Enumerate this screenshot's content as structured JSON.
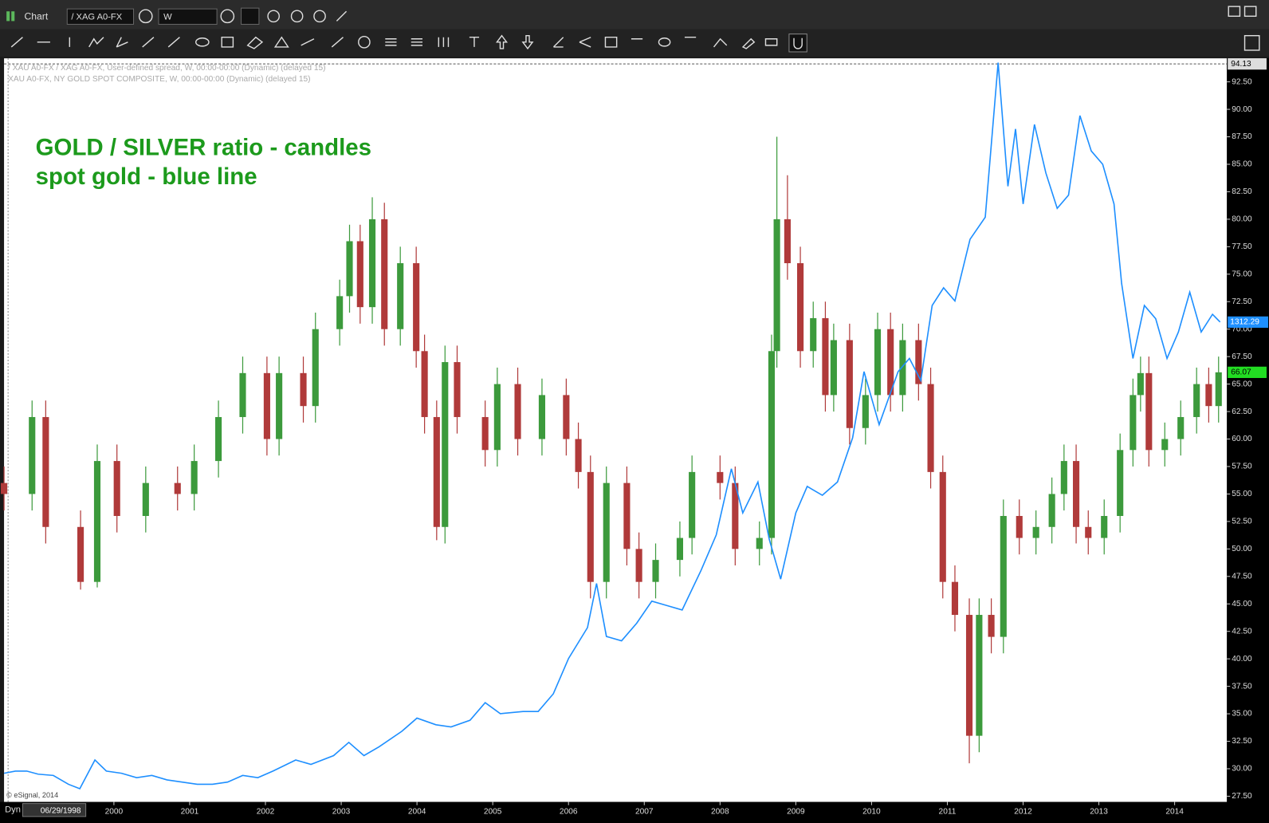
{
  "window": {
    "title": "Chart",
    "symbol": "/ XAG A0-FX",
    "interval": "W",
    "footer_mode": "Dyn",
    "start_date": "06/29/1998",
    "copyright": "© eSignal, 2014"
  },
  "chart_data": [
    {
      "type": "candlestick",
      "name": "/ XAU A0-FX / XAG A0-FX, User-defined spread, W, 00:00-00:00 (Dynamic) (delayed 15)",
      "annotations": [
        "GOLD / SILVER ratio - candles",
        "spot gold - blue line"
      ],
      "up_color": "#3c9a3c",
      "down_color": "#b03a3a",
      "x": [
        1998.55,
        1998.92,
        1999.1,
        1999.56,
        1999.78,
        2000.04,
        2000.42,
        2000.84,
        2001.06,
        2001.38,
        2001.7,
        2002.02,
        2002.18,
        2002.5,
        2002.66,
        2002.98,
        2003.11,
        2003.25,
        2003.41,
        2003.57,
        2003.78,
        2003.99,
        2004.1,
        2004.26,
        2004.37,
        2004.53,
        2004.9,
        2005.06,
        2005.33,
        2005.65,
        2005.97,
        2006.13,
        2006.29,
        2006.5,
        2006.77,
        2006.93,
        2007.15,
        2007.47,
        2007.63,
        2008.0,
        2008.2,
        2008.52,
        2008.68,
        2008.75,
        2008.89,
        2009.06,
        2009.23,
        2009.39,
        2009.5,
        2009.71,
        2009.92,
        2010.08,
        2010.25,
        2010.41,
        2010.62,
        2010.78,
        2010.94,
        2011.1,
        2011.29,
        2011.42,
        2011.58,
        2011.74,
        2011.95,
        2012.17,
        2012.38,
        2012.54,
        2012.7,
        2012.86,
        2013.07,
        2013.28,
        2013.45,
        2013.55,
        2013.66,
        2013.87,
        2014.08,
        2014.29,
        2014.45,
        2014.58
      ],
      "open": [
        56,
        55,
        62,
        52,
        47,
        58,
        53,
        56,
        55,
        58,
        62,
        66,
        60,
        66,
        63,
        70,
        73,
        78,
        72,
        80,
        70,
        76,
        68,
        62,
        52,
        67,
        62,
        59,
        65,
        60,
        64,
        60,
        57,
        47,
        56,
        50,
        47,
        49,
        51,
        57,
        56,
        50,
        51,
        68,
        80,
        76,
        68,
        71,
        64,
        69,
        61,
        64,
        70,
        64,
        69,
        65,
        57,
        47,
        44,
        33,
        44,
        42,
        53,
        51,
        52,
        55,
        58,
        52,
        51,
        53,
        59,
        64,
        66,
        59,
        60,
        62,
        65,
        63
      ],
      "high": [
        57.5,
        63.5,
        63.5,
        53.5,
        59.5,
        59.5,
        57.5,
        57.5,
        59.5,
        63.5,
        67.5,
        67.5,
        67.5,
        67.5,
        71.5,
        74.5,
        79.5,
        79.5,
        82,
        81.5,
        77.5,
        77.5,
        69.5,
        63.5,
        68.5,
        68.5,
        63.5,
        66.5,
        66.5,
        65.5,
        65.5,
        61.5,
        58.5,
        57.5,
        57.5,
        51.5,
        50.5,
        52.5,
        58.5,
        58.5,
        57.5,
        52.5,
        69.5,
        87.5,
        84,
        77.5,
        72.5,
        72.5,
        70.5,
        70.5,
        65.5,
        71.5,
        71.5,
        70.5,
        70.5,
        66.5,
        58.5,
        48.5,
        45.5,
        45.5,
        45.5,
        54.5,
        54.5,
        53.5,
        56.5,
        59.5,
        59.5,
        53.5,
        54.5,
        60.5,
        65.5,
        67.5,
        67.5,
        61.5,
        63.5,
        66.5,
        66.5,
        67.5
      ],
      "low": [
        53.5,
        53.5,
        50.5,
        46.3,
        46.5,
        51.5,
        51.5,
        53.5,
        53.5,
        56.5,
        60.5,
        58.5,
        58.5,
        61.5,
        61.5,
        68.5,
        71.5,
        70.5,
        70.5,
        68.5,
        68.5,
        66.5,
        60.5,
        50.8,
        50.5,
        60.5,
        57.5,
        57.5,
        58.5,
        58.5,
        58.5,
        55.5,
        45.5,
        45.5,
        48.5,
        45.5,
        45.5,
        47.5,
        49.5,
        54.5,
        48.5,
        48.5,
        49.5,
        66.5,
        74.5,
        66.5,
        66.5,
        62.5,
        62.5,
        59.5,
        59.5,
        62.5,
        62.5,
        62.5,
        63.5,
        55.5,
        45.5,
        42.5,
        30.5,
        31.5,
        40.5,
        40.5,
        49.5,
        49.5,
        50.5,
        53.5,
        50.5,
        49.5,
        49.5,
        51.5,
        57.5,
        62.5,
        57.5,
        57.5,
        58.5,
        60.5,
        61.5,
        61.5
      ],
      "close": [
        55,
        62,
        52,
        47,
        58,
        53,
        56,
        55,
        58,
        62,
        66,
        60,
        66,
        63,
        70,
        73,
        78,
        72,
        80,
        70,
        76,
        68,
        62,
        52,
        67,
        62,
        59,
        65,
        60,
        64,
        60,
        57,
        47,
        56,
        50,
        47,
        49,
        51,
        57,
        56,
        50,
        51,
        68,
        80,
        76,
        68,
        71,
        64,
        69,
        61,
        64,
        70,
        64,
        69,
        65,
        57,
        47,
        44,
        33,
        44,
        42,
        53,
        51,
        52,
        55,
        58,
        52,
        51,
        53,
        59,
        64,
        66,
        59,
        60,
        62,
        65,
        63,
        66.07
      ],
      "reference_line": 94.13,
      "xlim": [
        1998.55,
        2014.69
      ],
      "xticks": [
        2000,
        2001,
        2002,
        2003,
        2004,
        2005,
        2006,
        2007,
        2008,
        2009,
        2010,
        2011,
        2012,
        2013,
        2014
      ],
      "ylim": [
        26.98,
        94.64
      ],
      "yticks": [
        {
          "value": 27.5,
          "label": "27.50"
        },
        {
          "value": 30,
          "label": "30.00"
        },
        {
          "value": 32.5,
          "label": "32.50"
        },
        {
          "value": 35,
          "label": "35.00"
        },
        {
          "value": 37.5,
          "label": "37.50"
        },
        {
          "value": 40,
          "label": "40.00"
        },
        {
          "value": 42.5,
          "label": "42.50"
        },
        {
          "value": 45,
          "label": "45.00"
        },
        {
          "value": 47.5,
          "label": "47.50"
        },
        {
          "value": 50,
          "label": "50.00"
        },
        {
          "value": 52.5,
          "label": "52.50"
        },
        {
          "value": 55,
          "label": "55.00"
        },
        {
          "value": 57.5,
          "label": "57.50"
        },
        {
          "value": 60,
          "label": "60.00"
        },
        {
          "value": 62.5,
          "label": "62.50"
        },
        {
          "value": 65,
          "label": "65.00"
        },
        {
          "value": 67.5,
          "label": "67.50"
        },
        {
          "value": 70,
          "label": "70.00"
        },
        {
          "value": 72.5,
          "label": "72.50"
        },
        {
          "value": 75,
          "label": "75.00"
        },
        {
          "value": 77.5,
          "label": "77.50"
        },
        {
          "value": 80,
          "label": "80.00"
        },
        {
          "value": 82.5,
          "label": "82.50"
        },
        {
          "value": 85,
          "label": "85.00"
        },
        {
          "value": 87.5,
          "label": "87.50"
        },
        {
          "value": 90,
          "label": "90.00"
        },
        {
          "value": 92.5,
          "label": "92.50"
        }
      ]
    },
    {
      "type": "line",
      "name": "XAU A0-FX, NY GOLD SPOT COMPOSITE, W, 00:00-00:00 (Dynamic) (delayed 15)",
      "color": "#1e8fff",
      "axis": "y2",
      "x": [
        1998.55,
        1998.7,
        1998.85,
        1999.0,
        1999.2,
        1999.4,
        1999.55,
        1999.75,
        1999.9,
        2000.1,
        2000.3,
        2000.5,
        2000.7,
        2000.9,
        2001.1,
        2001.3,
        2001.5,
        2001.7,
        2001.9,
        2002.1,
        2002.4,
        2002.6,
        2002.9,
        2003.1,
        2003.3,
        2003.5,
        2003.8,
        2004.0,
        2004.25,
        2004.45,
        2004.7,
        2004.9,
        2005.1,
        2005.4,
        2005.6,
        2005.8,
        2006.0,
        2006.25,
        2006.37,
        2006.5,
        2006.7,
        2006.9,
        2007.1,
        2007.3,
        2007.5,
        2007.75,
        2007.95,
        2008.15,
        2008.3,
        2008.5,
        2008.65,
        2008.8,
        2009.0,
        2009.15,
        2009.35,
        2009.55,
        2009.75,
        2009.9,
        2010.1,
        2010.35,
        2010.5,
        2010.65,
        2010.8,
        2010.95,
        2011.1,
        2011.3,
        2011.5,
        2011.67,
        2011.8,
        2011.9,
        2012.0,
        2012.15,
        2012.3,
        2012.45,
        2012.6,
        2012.75,
        2012.9,
        2013.05,
        2013.2,
        2013.3,
        2013.45,
        2013.6,
        2013.75,
        2013.9,
        2014.05,
        2014.2,
        2014.35,
        2014.5,
        2014.6
      ],
      "values": [
        290,
        295,
        295,
        288,
        285,
        265,
        255,
        320,
        295,
        290,
        280,
        285,
        275,
        270,
        265,
        265,
        270,
        285,
        280,
        295,
        320,
        310,
        330,
        360,
        330,
        350,
        385,
        415,
        400,
        395,
        410,
        450,
        425,
        430,
        430,
        470,
        550,
        620,
        720,
        600,
        590,
        630,
        680,
        670,
        660,
        750,
        830,
        980,
        880,
        950,
        820,
        730,
        880,
        940,
        920,
        950,
        1050,
        1200,
        1080,
        1200,
        1230,
        1180,
        1350,
        1390,
        1360,
        1500,
        1550,
        1900,
        1620,
        1750,
        1580,
        1760,
        1650,
        1570,
        1600,
        1780,
        1700,
        1670,
        1580,
        1400,
        1230,
        1350,
        1320,
        1230,
        1290,
        1380,
        1290,
        1330,
        1312.29
      ],
      "y2lim": [
        225,
        1910
      ]
    }
  ]
}
